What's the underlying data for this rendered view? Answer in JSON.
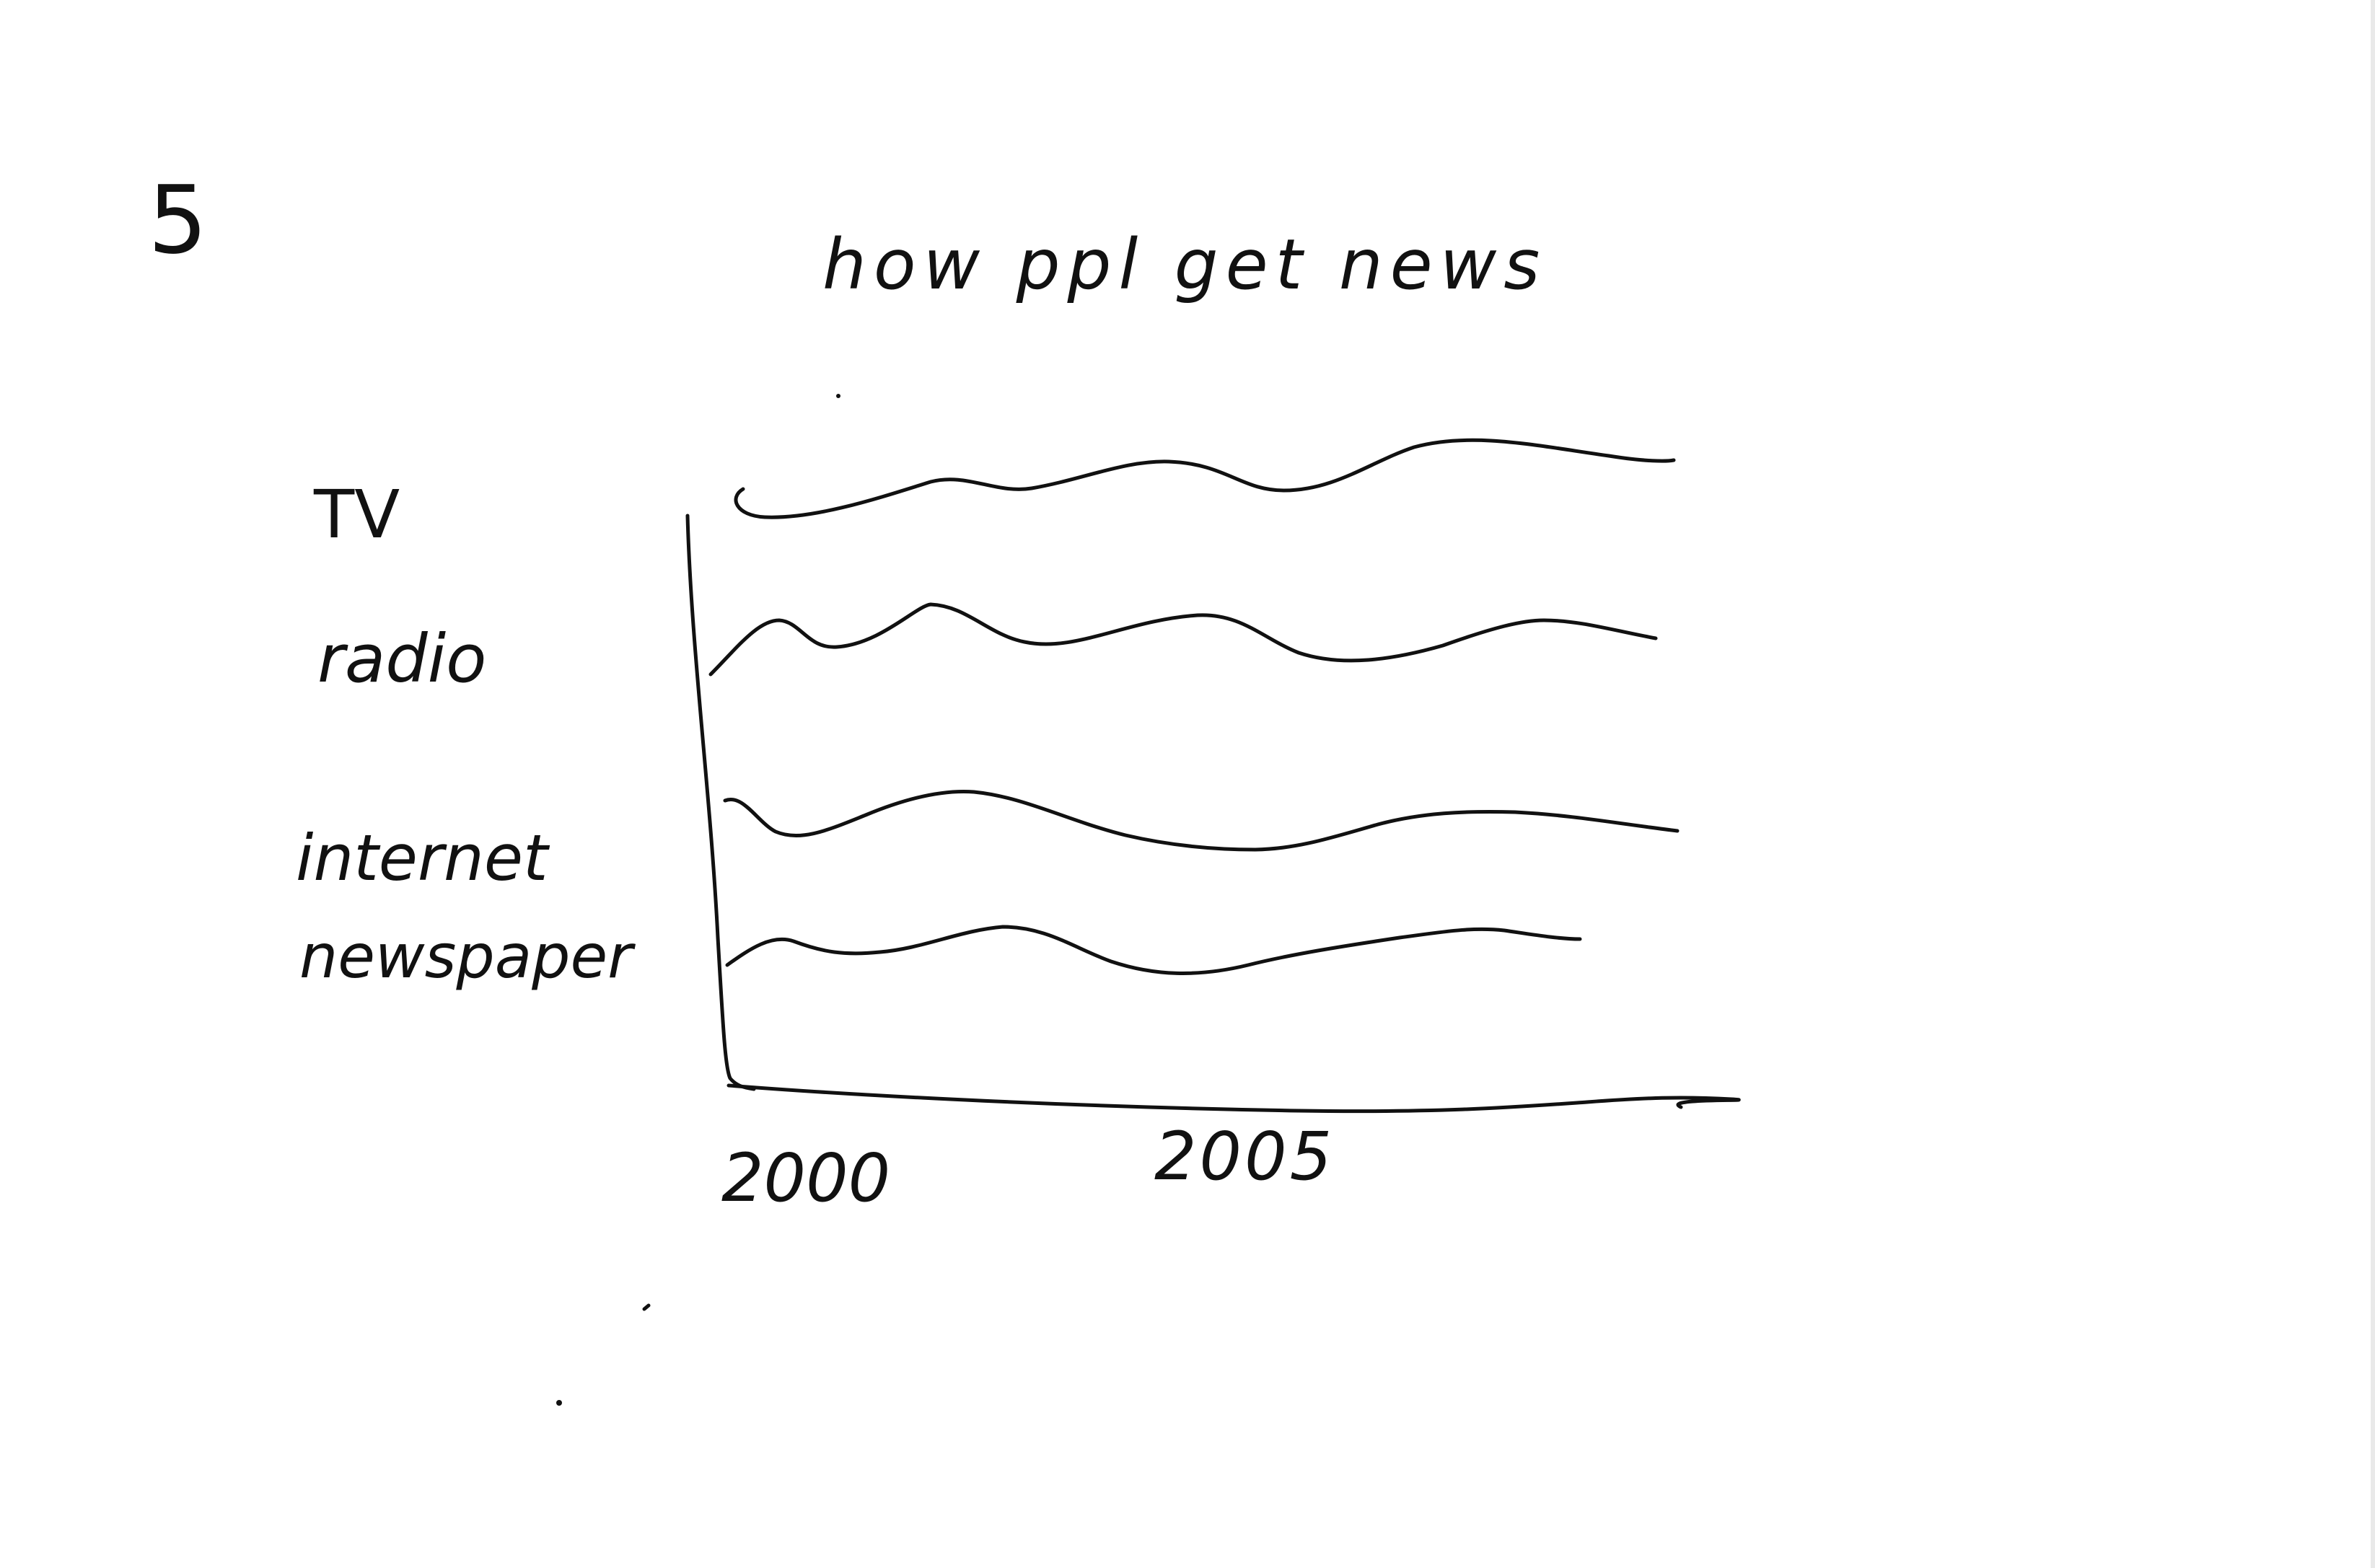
{
  "page_number": "5",
  "chart_data": {
    "type": "line",
    "title": "how ppl get news",
    "xlabel": "",
    "ylabel": "",
    "x_ticks": [
      "2000",
      "2005"
    ],
    "grid": false,
    "legend_position": "left",
    "series": [
      {
        "name": "TV"
      },
      {
        "name": "radio"
      },
      {
        "name": "internet"
      },
      {
        "name": "newspaper"
      }
    ]
  },
  "colors": {
    "ink": "#111111",
    "paper": "#ffffff"
  }
}
